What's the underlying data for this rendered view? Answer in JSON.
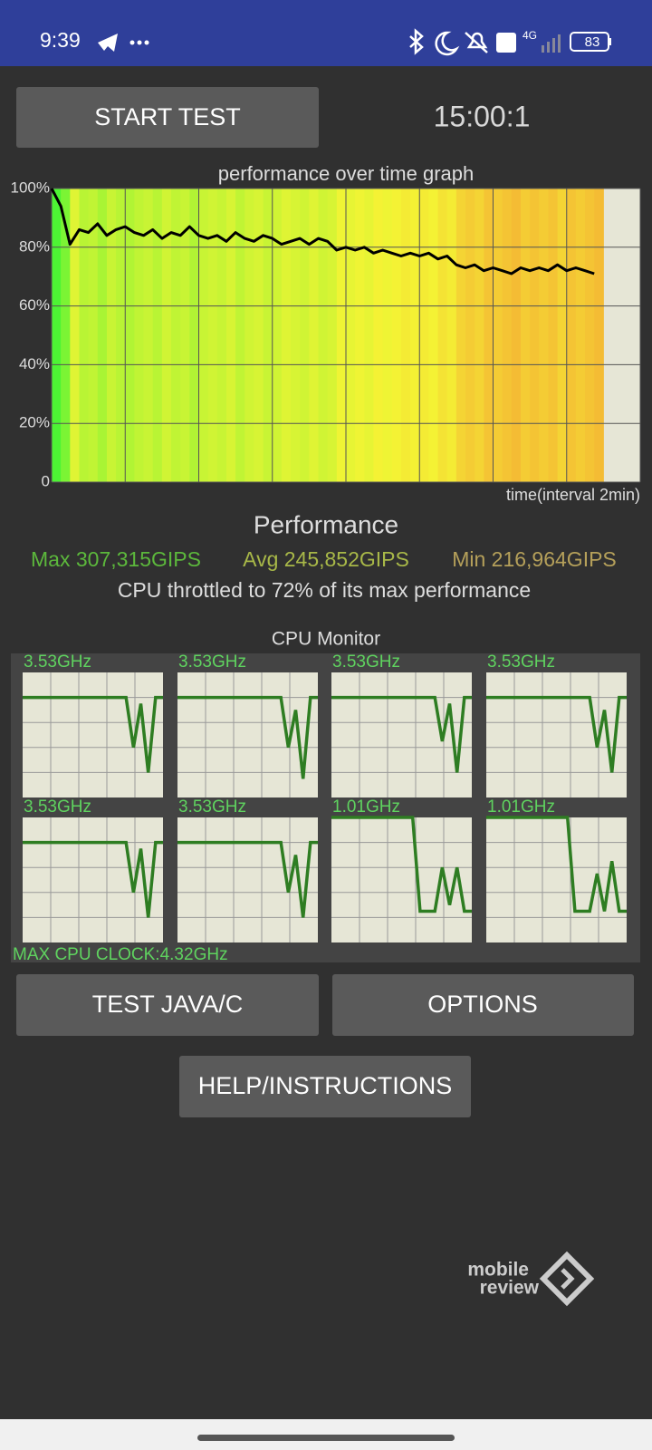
{
  "status_bar": {
    "time": "9:39",
    "battery": "83"
  },
  "buttons": {
    "start": "START TEST",
    "test": "TEST JAVA/C",
    "options": "OPTIONS",
    "help": "HELP/INSTRUCTIONS"
  },
  "timer": "15:00:1",
  "chart_data": {
    "type": "line",
    "title": "performance over time graph",
    "x_label": "time(interval 2min)",
    "x": [
      0,
      0.25,
      0.5,
      0.75,
      1,
      1.25,
      1.5,
      1.75,
      2,
      2.25,
      2.5,
      2.75,
      3,
      3.25,
      3.5,
      3.75,
      4,
      4.25,
      4.5,
      4.75,
      5,
      5.25,
      5.5,
      5.75,
      6,
      6.25,
      6.5,
      6.75,
      7,
      7.25,
      7.5,
      7.75,
      8,
      8.25,
      8.5,
      8.75,
      9,
      9.25,
      9.5,
      9.75,
      10,
      10.25,
      10.5,
      10.75,
      11,
      11.25,
      11.5,
      11.75,
      12,
      12.25,
      12.5,
      12.75,
      13,
      13.25,
      13.5,
      13.75,
      14,
      14.25,
      14.5,
      14.75
    ],
    "values": [
      100,
      94,
      81,
      86,
      85,
      88,
      84,
      86,
      87,
      85,
      84,
      86,
      83,
      85,
      84,
      87,
      84,
      83,
      84,
      82,
      85,
      83,
      82,
      84,
      83,
      81,
      82,
      83,
      81,
      83,
      82,
      79,
      80,
      79,
      80,
      78,
      79,
      78,
      77,
      78,
      77,
      78,
      76,
      77,
      74,
      73,
      74,
      72,
      73,
      72,
      71,
      73,
      72,
      73,
      72,
      74,
      72,
      73,
      72,
      71
    ],
    "color": "#000000",
    "xlim": [
      0,
      16
    ],
    "xticks": [
      0,
      2,
      4,
      6,
      8,
      10,
      12,
      14,
      16
    ],
    "ylim": [
      0,
      100
    ],
    "yticks": [
      0,
      {
        "value": 20,
        "label": "20%"
      },
      {
        "value": 40,
        "label": "40%"
      },
      {
        "value": 60,
        "label": "60%"
      },
      {
        "value": 80,
        "label": "80%"
      },
      {
        "value": 100,
        "label": "100%"
      }
    ],
    "grid": true
  },
  "performance": {
    "heading": "Performance",
    "max": "Max 307,315GIPS",
    "avg": "Avg 245,852GIPS",
    "min": "Min 216,964GIPS",
    "throttle": "CPU throttled to 72% of its max performance"
  },
  "cpu_monitor": {
    "title": "CPU Monitor",
    "ylim": [
      0,
      100
    ],
    "max_clock": "MAX CPU CLOCK:4.32GHz",
    "cores": [
      {
        "label": "3.53GHz",
        "values": [
          80,
          80,
          80,
          80,
          80,
          80,
          80,
          80,
          80,
          80,
          80,
          80,
          80,
          80,
          80,
          40,
          75,
          20,
          80,
          80
        ]
      },
      {
        "label": "3.53GHz",
        "values": [
          80,
          80,
          80,
          80,
          80,
          80,
          80,
          80,
          80,
          80,
          80,
          80,
          80,
          80,
          80,
          40,
          70,
          15,
          80,
          80
        ]
      },
      {
        "label": "3.53GHz",
        "values": [
          80,
          80,
          80,
          80,
          80,
          80,
          80,
          80,
          80,
          80,
          80,
          80,
          80,
          80,
          80,
          45,
          75,
          20,
          80,
          80
        ]
      },
      {
        "label": "3.53GHz",
        "values": [
          80,
          80,
          80,
          80,
          80,
          80,
          80,
          80,
          80,
          80,
          80,
          80,
          80,
          80,
          80,
          40,
          70,
          20,
          80,
          80
        ]
      },
      {
        "label": "3.53GHz",
        "values": [
          80,
          80,
          80,
          80,
          80,
          80,
          80,
          80,
          80,
          80,
          80,
          80,
          80,
          80,
          80,
          40,
          75,
          20,
          80,
          80
        ]
      },
      {
        "label": "3.53GHz",
        "values": [
          80,
          80,
          80,
          80,
          80,
          80,
          80,
          80,
          80,
          80,
          80,
          80,
          80,
          80,
          80,
          40,
          70,
          20,
          80,
          80
        ]
      },
      {
        "label": "1.01GHz",
        "values": [
          100,
          100,
          100,
          100,
          100,
          100,
          100,
          100,
          100,
          100,
          100,
          100,
          25,
          25,
          25,
          60,
          30,
          60,
          25,
          25
        ]
      },
      {
        "label": "1.01GHz",
        "values": [
          100,
          100,
          100,
          100,
          100,
          100,
          100,
          100,
          100,
          100,
          100,
          100,
          25,
          25,
          25,
          55,
          25,
          65,
          25,
          25
        ]
      }
    ]
  },
  "watermark": {
    "line1": "mobile",
    "line2": "review"
  }
}
